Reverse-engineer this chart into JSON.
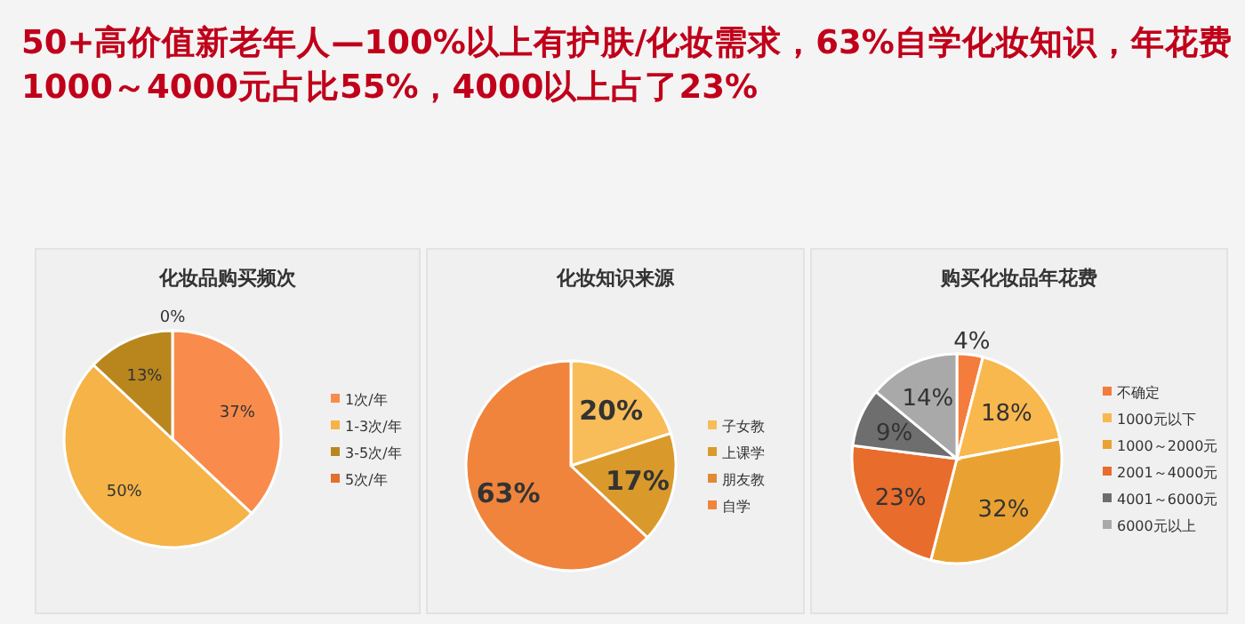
{
  "chart_data": [
    {
      "type": "pie",
      "annotations": [
        "50+高价值新老年人—100%以上有护肤/化妆需求，63%自学化妆知识，年花费",
        "1000～4000元占比55%，4000以上占了23%"
      ],
      "title": "化妆品购买频次",
      "categories": [
        "1次/年",
        "1-3次/年",
        "3-5次/年",
        "5次/年"
      ],
      "values": [
        37,
        50,
        13,
        0
      ],
      "colors": [
        "#f98c4c",
        "#f5b348",
        "#b9861e",
        "#e3702c"
      ],
      "value_labels": [
        "37%",
        "50%",
        "13%",
        "0%"
      ],
      "legend": "right"
    },
    {
      "type": "pie",
      "title": "化妆知识来源",
      "categories": [
        "子女教",
        "上课学",
        "朋友教",
        "自学"
      ],
      "values": [
        20,
        17,
        0,
        63
      ],
      "colors": [
        "#f8bc58",
        "#d99a2b",
        "#e08a35",
        "#f0843c"
      ],
      "value_labels": [
        "20%",
        "17%",
        null,
        "63%"
      ],
      "legend": "right"
    },
    {
      "type": "pie",
      "title": "购买化妆品年花费",
      "categories": [
        "不确定",
        "1000元以下",
        "1000～2000元",
        "2001～4000元",
        "4001～6000元",
        "6000元以上"
      ],
      "values": [
        4,
        18,
        32,
        23,
        9,
        14
      ],
      "colors": [
        "#f47c3c",
        "#f8b84e",
        "#e9a232",
        "#e86c2c",
        "#6e6e6e",
        "#a9a9a9"
      ],
      "value_labels": [
        "4%",
        "18%",
        "32%",
        "23%",
        "9%",
        "14%"
      ],
      "legend": "right"
    }
  ]
}
